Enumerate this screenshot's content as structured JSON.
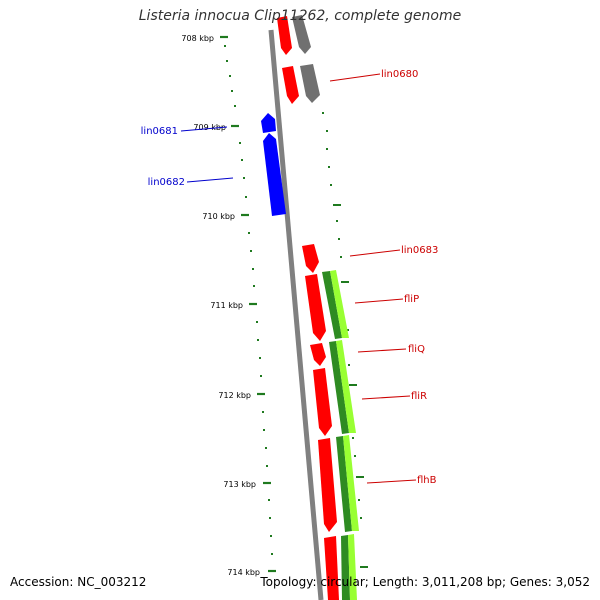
{
  "title": "Listeria innocua Clip11262, complete genome",
  "footer": {
    "accession": "Accession: NC_003212",
    "summary": "Topology: circular; Length: 3,011,208 bp; Genes: 3,052"
  },
  "colors": {
    "backbone": "#808080",
    "forward_cds": "#ff0000",
    "reverse_cds": "#0000ff",
    "gray_feature": "#707070",
    "green_feature": "#99ff33",
    "dark_green_feature": "#2e8b22",
    "tick": "#1f7a1f"
  },
  "ticks": [
    "708 kbp",
    "709 kbp",
    "710 kbp",
    "711 kbp",
    "712 kbp",
    "713 kbp",
    "714 kbp"
  ],
  "gene_labels": [
    {
      "text": "lin0680",
      "strand": "forward"
    },
    {
      "text": "lin0681",
      "strand": "reverse"
    },
    {
      "text": "lin0682",
      "strand": "reverse"
    },
    {
      "text": "lin0683",
      "strand": "forward"
    },
    {
      "text": "fliP",
      "strand": "forward"
    },
    {
      "text": "fliQ",
      "strand": "forward"
    },
    {
      "text": "fliR",
      "strand": "forward"
    },
    {
      "text": "flhB",
      "strand": "forward"
    }
  ]
}
